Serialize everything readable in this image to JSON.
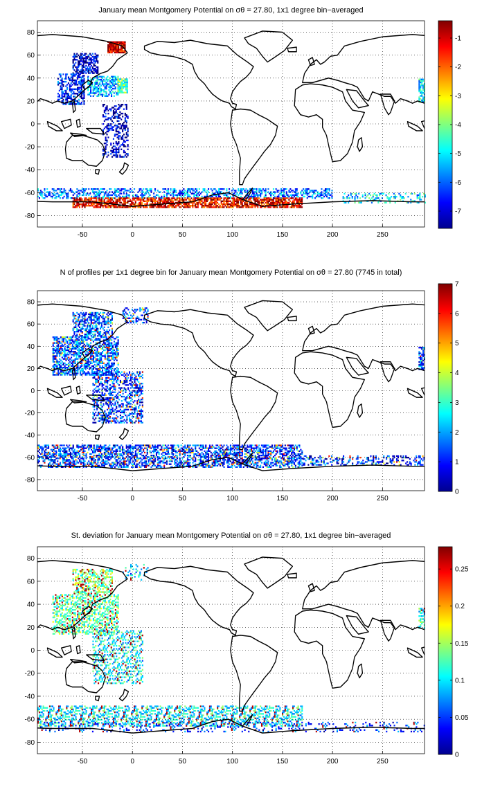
{
  "panels": [
    {
      "id": "mean",
      "title": "January mean Montgomery Potential on σθ = 27.80, 1x1 degree bin−averaged",
      "colorbar": {
        "min": -7.6,
        "max": -0.4,
        "ticks": [
          -1,
          -2,
          -3,
          -4,
          -5,
          -6,
          -7
        ]
      }
    },
    {
      "id": "count",
      "title": "N of profiles per 1x1 degree bin for January mean Montgomery Potential on σθ = 27.80 (7745 in total)",
      "colorbar": {
        "min": 0,
        "max": 7,
        "ticks": [
          7,
          6,
          5,
          4,
          3,
          2,
          1,
          0
        ]
      }
    },
    {
      "id": "std",
      "title": "St. deviation for January mean Montgomery Potential on σθ = 27.80, 1x1 degree bin−averaged",
      "colorbar": {
        "min": 0,
        "max": 0.28,
        "ticks": [
          0.25,
          0.2,
          0.15,
          0.1,
          0.05,
          0
        ]
      }
    }
  ],
  "map_axes": {
    "x_range": [
      -95,
      292
    ],
    "y_range": [
      -90,
      90
    ],
    "x_ticks": [
      -50,
      0,
      50,
      100,
      150,
      200,
      250
    ],
    "y_ticks": [
      80,
      60,
      40,
      20,
      0,
      -20,
      -40,
      -60,
      -80
    ],
    "grid": "dotted"
  },
  "colormap": "jet"
}
